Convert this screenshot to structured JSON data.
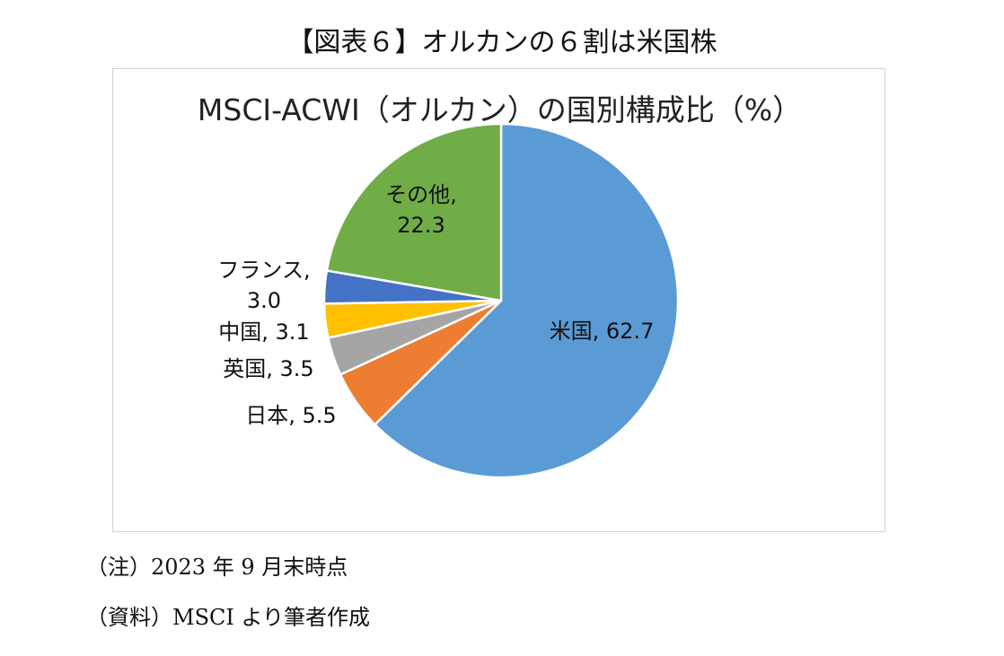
{
  "figure_title": "【図表６】オルカンの６割は米国株",
  "chart_data": {
    "type": "pie",
    "title": "MSCI-ACWI（オルカン）の国別構成比（%）",
    "start_at": "12 o'clock",
    "direction": "clockwise",
    "slices": [
      {
        "label": "米国",
        "value": 62.7,
        "display": "米国, 62.7",
        "color": "#5B9BD5"
      },
      {
        "label": "日本",
        "value": 5.5,
        "display": "日本, 5.5",
        "color": "#ED7D31"
      },
      {
        "label": "英国",
        "value": 3.5,
        "display": "英国, 3.5",
        "color": "#A5A5A5"
      },
      {
        "label": "中国",
        "value": 3.1,
        "display": "中国, 3.1",
        "color": "#FFC000"
      },
      {
        "label": "フランス",
        "value": 3.0,
        "display": [
          "フランス,",
          "3.0"
        ],
        "color": "#4472C4"
      },
      {
        "label": "その他",
        "value": 22.3,
        "display": [
          "その他,",
          "22.3"
        ],
        "color": "#70AD47"
      }
    ]
  },
  "notes": {
    "note": "（注）2023 年 9 月末時点",
    "source": "（資料）MSCI より筆者作成"
  }
}
